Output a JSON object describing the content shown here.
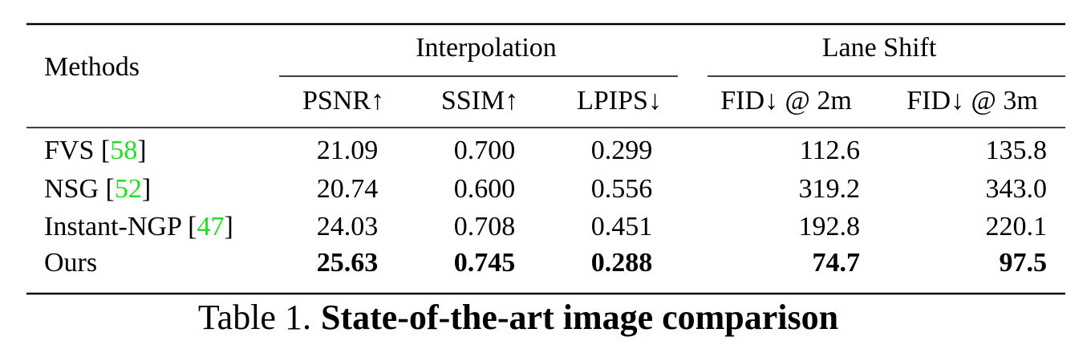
{
  "table": {
    "groups": [
      "Interpolation",
      "Lane Shift"
    ],
    "method_header": "Methods",
    "columns": [
      "PSNR↑",
      "SSIM↑",
      "LPIPS↓",
      "FID↓ @ 2m",
      "FID↓ @ 3m"
    ],
    "rows": [
      {
        "method": [
          "FVS [",
          "58",
          "]"
        ],
        "values": [
          "21.09",
          "0.700",
          "0.299",
          "112.6",
          "135.8"
        ],
        "bold": false
      },
      {
        "method": [
          "NSG [",
          "52",
          "]"
        ],
        "values": [
          "20.74",
          "0.600",
          "0.556",
          "319.2",
          "343.0"
        ],
        "bold": false
      },
      {
        "method": [
          "Instant-NGP [",
          "47",
          "]"
        ],
        "values": [
          "24.03",
          "0.708",
          "0.451",
          "192.8",
          "220.1"
        ],
        "bold": false
      },
      {
        "method": [
          "Ours"
        ],
        "values": [
          "25.63",
          "0.745",
          "0.288",
          "74.7",
          "97.5"
        ],
        "bold": true
      }
    ]
  },
  "caption": {
    "label": "Table 1.",
    "text": "State-of-the-art image comparison"
  }
}
